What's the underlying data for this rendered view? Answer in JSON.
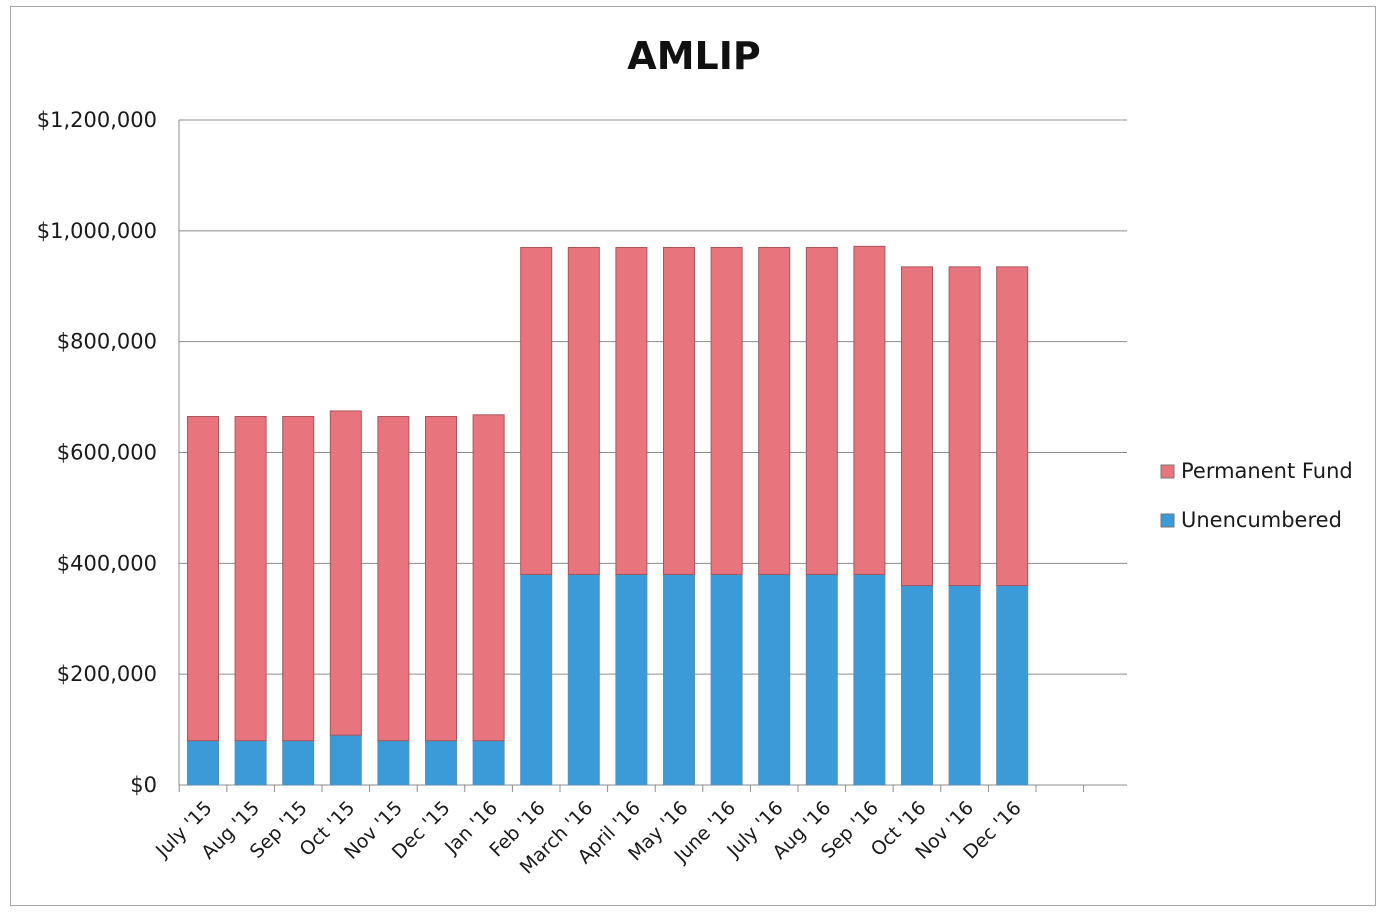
{
  "chart_data": {
    "type": "bar",
    "stacked": true,
    "title": "AMLIP",
    "xlabel": "",
    "ylabel": "",
    "ylim": [
      0,
      1200000
    ],
    "y_ticks": [
      0,
      200000,
      400000,
      600000,
      800000,
      1000000,
      1200000
    ],
    "y_tick_labels": [
      "$0",
      "$200,000",
      "$400,000",
      "$600,000",
      "$800,000",
      "$1,000,000",
      "$1,200,000"
    ],
    "grid": true,
    "legend_position": "right",
    "categories": [
      "July '15",
      "Aug '15",
      "Sep '15",
      "Oct '15",
      "Nov '15",
      "Dec '15",
      "Jan '16",
      "Feb '16",
      "March '16",
      "April '16",
      "May '16",
      "June '16",
      "July '16",
      "Aug '16",
      "Sep '16",
      "Oct '16",
      "Nov '16",
      "Dec '16"
    ],
    "series": [
      {
        "name": "Unencumbered",
        "color": "#3b9bd8",
        "values": [
          80000,
          80000,
          80000,
          90000,
          80000,
          80000,
          80000,
          380000,
          380000,
          380000,
          380000,
          380000,
          380000,
          380000,
          380000,
          360000,
          360000,
          360000
        ]
      },
      {
        "name": "Permanent Fund",
        "color": "#e8757e",
        "values": [
          585000,
          585000,
          585000,
          585000,
          585000,
          585000,
          588000,
          590000,
          590000,
          590000,
          590000,
          590000,
          590000,
          590000,
          592000,
          575000,
          575000,
          575000
        ]
      }
    ],
    "legend_order": [
      "Permanent Fund",
      "Unencumbered"
    ]
  }
}
